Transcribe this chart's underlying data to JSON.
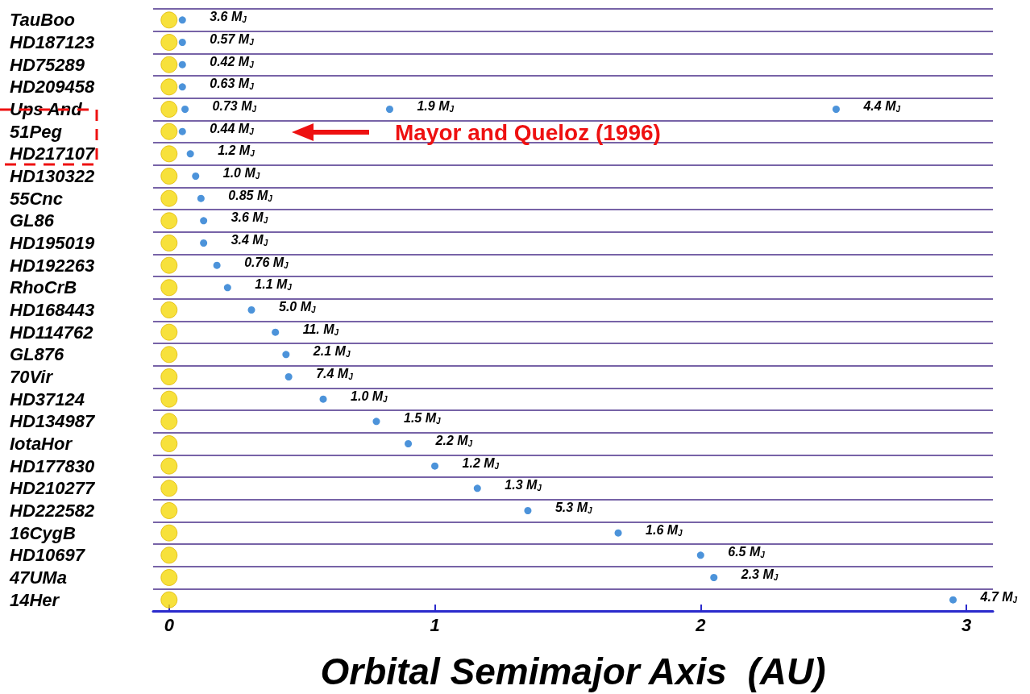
{
  "chart_data": {
    "type": "scatter",
    "orientation": "horizontal",
    "xlabel": "Orbital Semimajor Axis  (AU)",
    "categories": [
      "TauBoo",
      "HD187123",
      "HD75289",
      "HD209458",
      "Ups And",
      "51Peg",
      "HD217107",
      "HD130322",
      "55Cnc",
      "GL86",
      "HD195019",
      "HD192263",
      "RhoCrB",
      "HD168443",
      "HD114762",
      "GL876",
      "70Vir",
      "HD37124",
      "HD134987",
      "IotaHor",
      "HD177830",
      "HD210277",
      "HD222582",
      "16CygB",
      "HD10697",
      "47UMa",
      "14Her"
    ],
    "series": [
      {
        "color": "#f5d90a",
        "values": [
          0,
          0,
          0,
          0,
          0,
          0,
          0,
          0,
          0,
          0,
          0,
          0,
          0,
          0,
          0,
          0,
          0,
          0,
          0,
          0,
          0,
          0,
          0,
          0,
          0,
          0,
          0
        ]
      },
      {
        "color": "#1f78d1",
        "values": [
          0.05,
          0.05,
          0.05,
          0.05,
          0.06,
          0.05,
          0.08,
          0.1,
          0.12,
          0.13,
          0.13,
          0.18,
          0.22,
          0.31,
          0.4,
          0.44,
          0.45,
          0.58,
          0.78,
          0.9,
          1.0,
          1.16,
          1.35,
          1.69,
          2.0,
          2.05,
          2.95
        ]
      },
      {
        "color": "#1f78d1",
        "values": [
          null,
          null,
          null,
          null,
          0.83,
          null,
          null,
          null,
          null,
          null,
          null,
          null,
          null,
          null,
          null,
          null,
          null,
          null,
          null,
          null,
          null,
          null,
          null,
          null,
          null,
          null,
          null
        ]
      },
      {
        "color": "#1f78d1",
        "values": [
          null,
          null,
          null,
          null,
          2.51,
          null,
          null,
          null,
          null,
          null,
          null,
          null,
          null,
          null,
          null,
          null,
          null,
          null,
          null,
          null,
          null,
          null,
          null,
          null,
          null,
          null,
          null
        ]
      }
    ],
    "xlim": [
      -0.06,
      3.1
    ],
    "xticks": [
      0,
      1,
      2,
      3
    ],
    "grid": "y",
    "marker": "circle",
    "annotations": [
      {
        "text": "3.6 M$_{J}$",
        "x": 0.05,
        "y": "TauBoo"
      },
      {
        "text": "0.57 M$_{J}$",
        "x": 0.05,
        "y": "HD187123"
      },
      {
        "text": "0.42 M$_{J}$",
        "x": 0.05,
        "y": "HD75289"
      },
      {
        "text": "0.63 M$_{J}$",
        "x": 0.05,
        "y": "HD209458"
      },
      {
        "text": "0.73 M$_{J}$",
        "x": 0.06,
        "y": "Ups And"
      },
      {
        "text": "1.9 M$_{J}$",
        "x": 0.83,
        "y": "Ups And"
      },
      {
        "text": "4.4 M$_{J}$",
        "x": 2.51,
        "y": "Ups And"
      },
      {
        "text": "0.44 M$_{J}$",
        "x": 0.05,
        "y": "51Peg"
      },
      {
        "text": "1.2 M$_{J}$",
        "x": 0.08,
        "y": "HD217107"
      },
      {
        "text": "1.0 M$_{J}$",
        "x": 0.1,
        "y": "HD130322"
      },
      {
        "text": "0.85 M$_{J}$",
        "x": 0.12,
        "y": "55Cnc"
      },
      {
        "text": "3.6 M$_{J}$",
        "x": 0.13,
        "y": "GL86"
      },
      {
        "text": "3.4 M$_{J}$",
        "x": 0.13,
        "y": "HD195019"
      },
      {
        "text": "0.76 M$_{J}$",
        "x": 0.18,
        "y": "HD192263"
      },
      {
        "text": "1.1 M$_{J}$",
        "x": 0.22,
        "y": "RhoCrB"
      },
      {
        "text": "5.0 M$_{J}$",
        "x": 0.31,
        "y": "HD168443"
      },
      {
        "text": "11. M$_{J}$",
        "x": 0.4,
        "y": "HD114762"
      },
      {
        "text": "2.1 M$_{J}$",
        "x": 0.44,
        "y": "GL876"
      },
      {
        "text": "7.4 M$_{J}$",
        "x": 0.45,
        "y": "70Vir"
      },
      {
        "text": "1.0 M$_{J}$",
        "x": 0.58,
        "y": "HD37124"
      },
      {
        "text": "1.5 M$_{J}$",
        "x": 0.78,
        "y": "HD134987"
      },
      {
        "text": "2.2 M$_{J}$",
        "x": 0.9,
        "y": "IotaHor"
      },
      {
        "text": "1.2 M$_{J}$",
        "x": 1.0,
        "y": "HD177830"
      },
      {
        "text": "1.3 M$_{J}$",
        "x": 1.16,
        "y": "HD210277"
      },
      {
        "text": "5.3 M$_{J}$",
        "x": 1.35,
        "y": "HD222582"
      },
      {
        "text": "1.6 M$_{J}$",
        "x": 1.69,
        "y": "16CygB"
      },
      {
        "text": "6.5 M$_{J}$",
        "x": 2.0,
        "y": "HD10697"
      },
      {
        "text": "2.3 M$_{J}$",
        "x": 2.05,
        "y": "47UMa"
      },
      {
        "text": "4.7 M$_{J}$",
        "x": 2.95,
        "y": "14Her"
      },
      "Mayor and Queloz (1996)"
    ]
  }
}
